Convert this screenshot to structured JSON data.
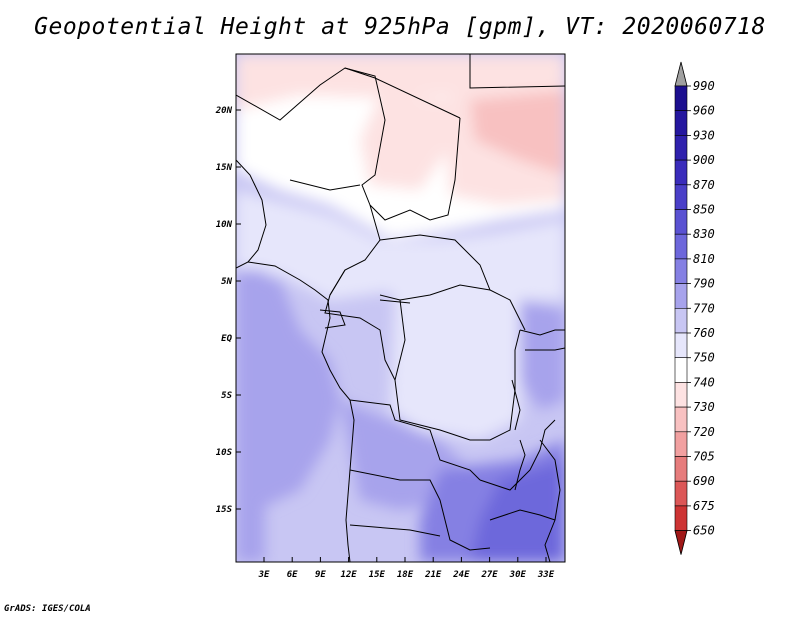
{
  "title": "Geopotential Height at 925hPa [gpm], VT: 2020060718",
  "footer": "GrADS: IGES/COLA",
  "map": {
    "lat_labels": [
      "20N",
      "15N",
      "10N",
      "5N",
      "EQ",
      "5S",
      "10S",
      "15S"
    ],
    "lon_labels": [
      "3E",
      "6E",
      "9E",
      "12E",
      "15E",
      "18E",
      "21E",
      "24E",
      "27E",
      "30E",
      "33E"
    ]
  },
  "colorbar": {
    "labels": [
      "990",
      "960",
      "930",
      "900",
      "870",
      "850",
      "830",
      "810",
      "790",
      "770",
      "760",
      "750",
      "740",
      "730",
      "720",
      "705",
      "690",
      "675",
      "650"
    ],
    "colors": {
      "top_arrow": "#a0a0a0",
      "bottom_arrow": "#a01818",
      "bins": [
        "#1c0f8f",
        "#25179f",
        "#2f21ad",
        "#3a2cbb",
        "#4a3fc8",
        "#5a52d2",
        "#6d67db",
        "#8580e3",
        "#a7a3ec",
        "#c8c6f3",
        "#e6e6fb",
        "#ffffff",
        "#fde2e2",
        "#f8c1c1",
        "#f1a0a0",
        "#e67c7c",
        "#dc5757",
        "#cd3434",
        "#b81c1c"
      ]
    }
  }
}
